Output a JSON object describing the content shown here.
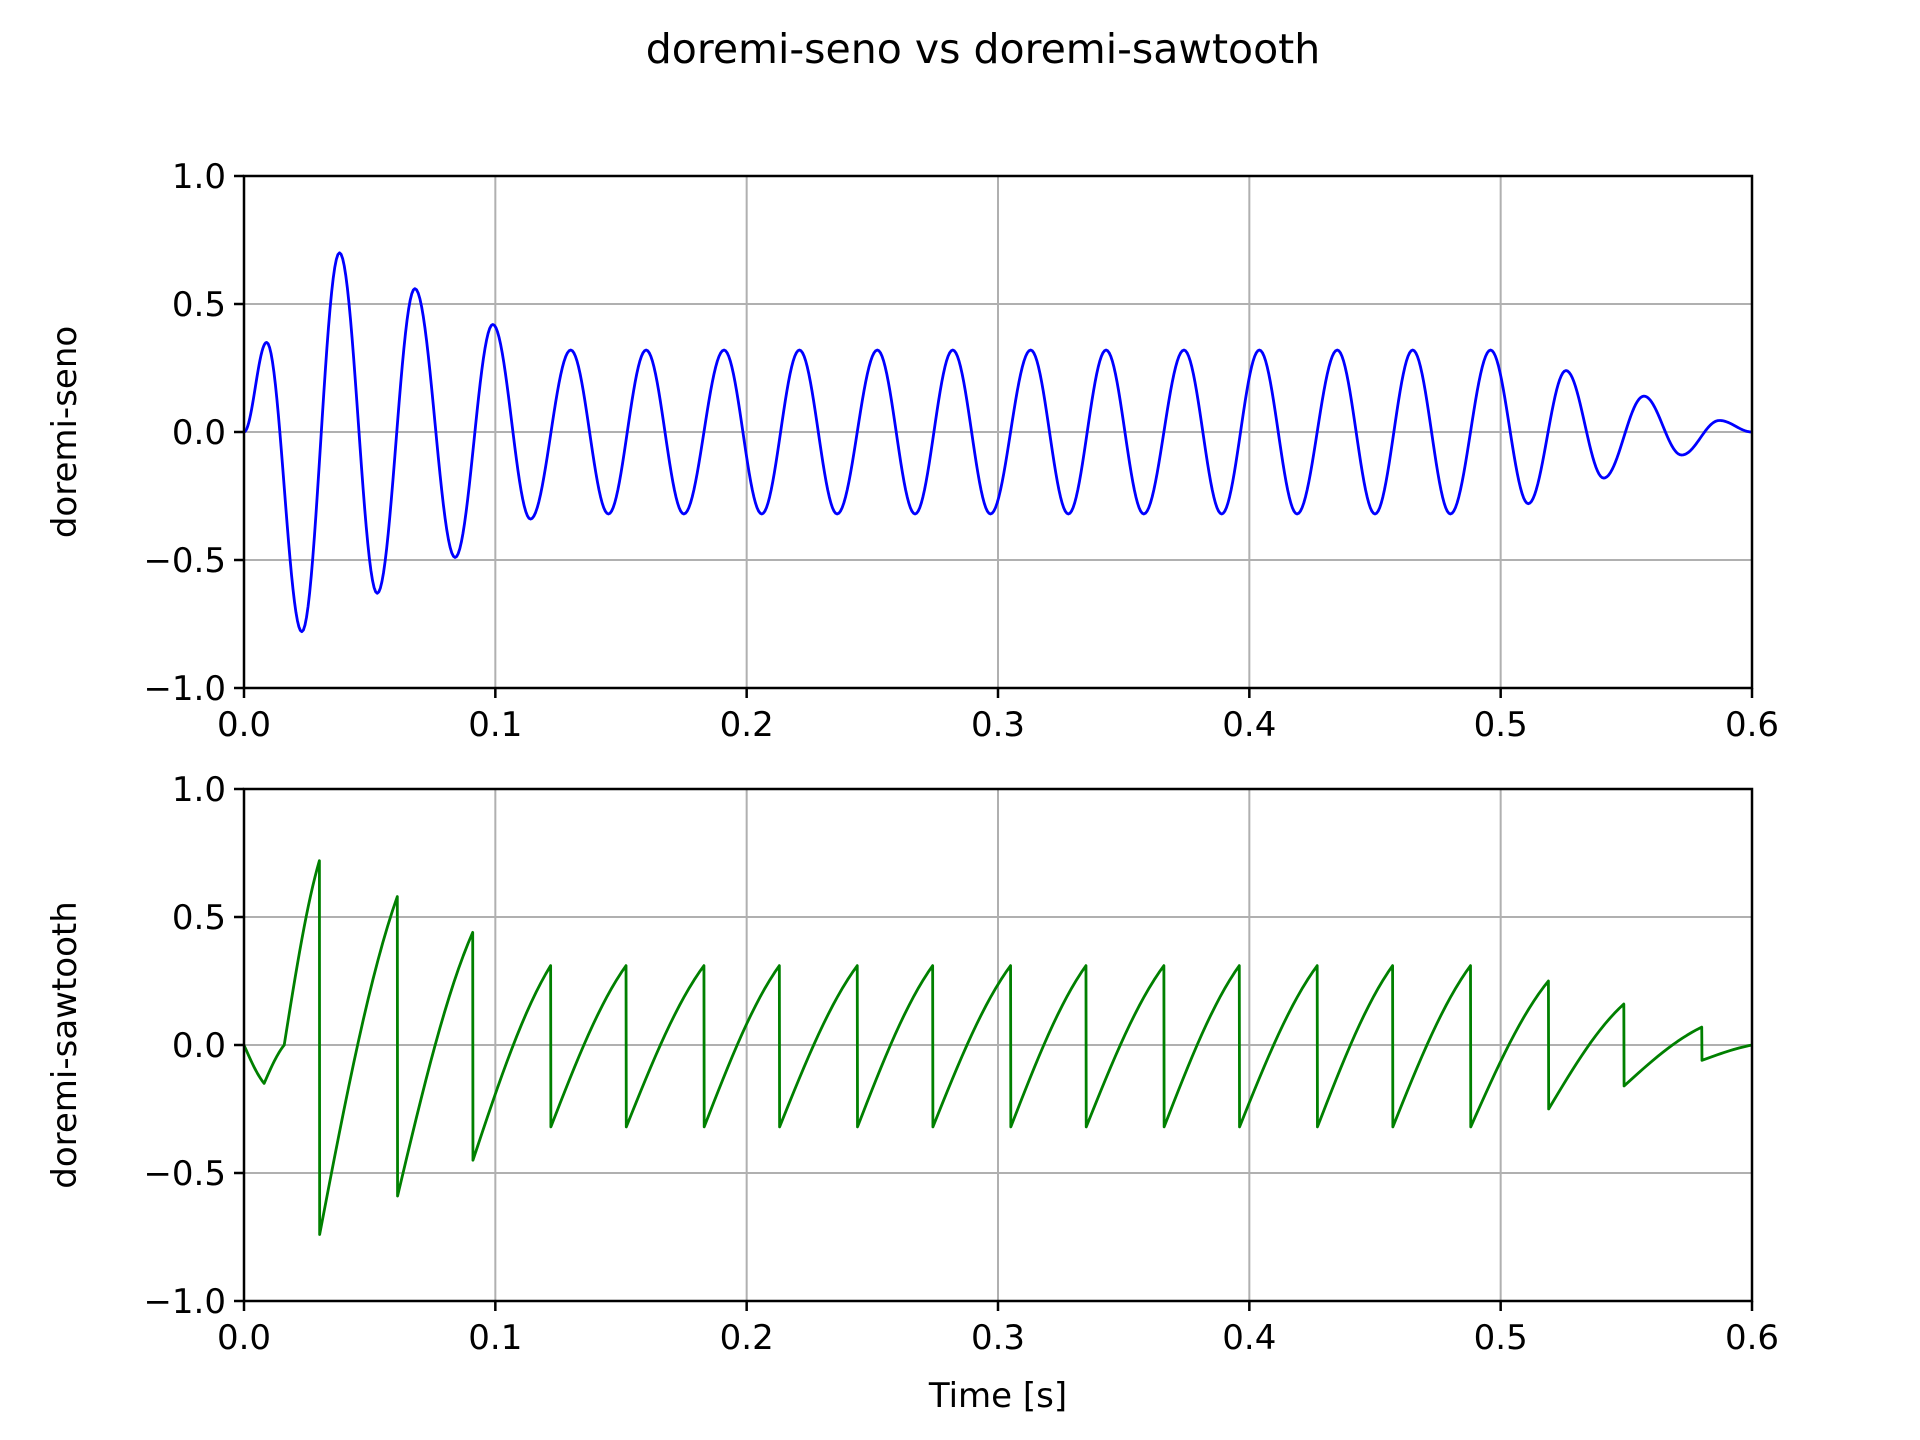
{
  "title": "doremi-seno vs doremi-sawtooth",
  "chart_data": [
    {
      "type": "line",
      "ylabel": "doremi-seno",
      "xlabel": "",
      "xlim": [
        0,
        0.6
      ],
      "ylim": [
        -1.0,
        1.0
      ],
      "grid": true,
      "xticks": [
        "0.0",
        "0.1",
        "0.2",
        "0.3",
        "0.4",
        "0.5",
        "0.6"
      ],
      "yticks": [
        "−1.0",
        "−0.5",
        "0.0",
        "0.5",
        "1.0"
      ],
      "series": [
        {
          "color": "#0000ff",
          "waveform": "sine",
          "period": 0.0305,
          "x": [
            0,
            0.009,
            0.023,
            0.038,
            0.053,
            0.068,
            0.084,
            0.099,
            0.114,
            0.13,
            0.145,
            0.16,
            0.175,
            0.191,
            0.206,
            0.221,
            0.236,
            0.252,
            0.267,
            0.282,
            0.297,
            0.313,
            0.328,
            0.343,
            0.358,
            0.374,
            0.389,
            0.404,
            0.419,
            0.435,
            0.45,
            0.465,
            0.48,
            0.496,
            0.511,
            0.526,
            0.541,
            0.557,
            0.572,
            0.587,
            0.6
          ],
          "y": [
            0,
            0.35,
            -0.78,
            0.7,
            -0.63,
            0.56,
            -0.49,
            0.42,
            -0.34,
            0.32,
            -0.32,
            0.32,
            -0.32,
            0.32,
            -0.32,
            0.32,
            -0.32,
            0.32,
            -0.32,
            0.32,
            -0.32,
            0.32,
            -0.32,
            0.32,
            -0.32,
            0.32,
            -0.32,
            0.32,
            -0.32,
            0.32,
            -0.32,
            0.32,
            -0.32,
            0.32,
            -0.28,
            0.24,
            -0.18,
            0.14,
            -0.09,
            0.045,
            0
          ]
        }
      ]
    },
    {
      "type": "line",
      "ylabel": "doremi-sawtooth",
      "xlabel": "Time [s]",
      "xlim": [
        0,
        0.6
      ],
      "ylim": [
        -1.0,
        1.0
      ],
      "grid": true,
      "xticks": [
        "0.0",
        "0.1",
        "0.2",
        "0.3",
        "0.4",
        "0.5",
        "0.6"
      ],
      "yticks": [
        "−1.0",
        "−0.5",
        "0.0",
        "0.5",
        "1.0"
      ],
      "series": [
        {
          "color": "#008000",
          "waveform": "sawtooth",
          "x": [
            0,
            0.008,
            0.016,
            0.03,
            0.0301,
            0.061,
            0.0611,
            0.091,
            0.0911,
            0.122,
            0.1221,
            0.152,
            0.1521,
            0.183,
            0.1831,
            0.213,
            0.2131,
            0.244,
            0.2441,
            0.274,
            0.2741,
            0.305,
            0.3051,
            0.335,
            0.3351,
            0.366,
            0.3661,
            0.396,
            0.3961,
            0.427,
            0.4271,
            0.457,
            0.4571,
            0.488,
            0.4881,
            0.519,
            0.5191,
            0.549,
            0.5491,
            0.58,
            0.5801,
            0.6
          ],
          "y": [
            0,
            -0.15,
            0.0,
            0.72,
            -0.74,
            0.58,
            -0.59,
            0.44,
            -0.45,
            0.31,
            -0.32,
            0.31,
            -0.32,
            0.31,
            -0.32,
            0.31,
            -0.32,
            0.31,
            -0.32,
            0.31,
            -0.32,
            0.31,
            -0.32,
            0.31,
            -0.32,
            0.31,
            -0.32,
            0.31,
            -0.32,
            0.31,
            -0.32,
            0.31,
            -0.32,
            0.31,
            -0.32,
            0.25,
            -0.25,
            0.16,
            -0.16,
            0.07,
            -0.06,
            0
          ]
        }
      ]
    }
  ]
}
